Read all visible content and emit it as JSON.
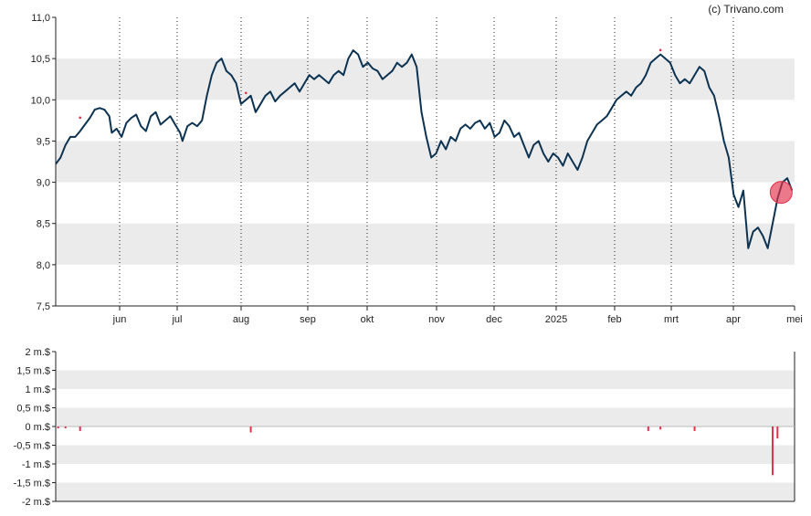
{
  "credit": "(c) Trivano.com",
  "colors": {
    "price_line": "#0d3352",
    "band": "#ebebeb",
    "marker": "#e0314b",
    "volume_bar": "#e0314b",
    "grid": "#222222"
  },
  "chart_data": [
    {
      "type": "line",
      "ylim": [
        7.5,
        11.0
      ],
      "y_ticks": [
        "11,0",
        "10,5",
        "10,0",
        "9,5",
        "9,0",
        "8,5",
        "8,0",
        "7,5"
      ],
      "x_ticks": [
        "jun",
        "jul",
        "aug",
        "sep",
        "okt",
        "nov",
        "dec",
        "2025",
        "feb",
        "mrt",
        "apr",
        "mei"
      ],
      "grid": "vertical dotted at month starts, alternating horizontal bands",
      "series": [
        {
          "values": [
            [
              0,
              9.22
            ],
            [
              2,
              9.3
            ],
            [
              4,
              9.45
            ],
            [
              6,
              9.55
            ],
            [
              8,
              9.55
            ],
            [
              10,
              9.62
            ],
            [
              12,
              9.7
            ],
            [
              14,
              9.78
            ],
            [
              16,
              9.88
            ],
            [
              18,
              9.9
            ],
            [
              20,
              9.88
            ],
            [
              22,
              9.8
            ],
            [
              23,
              9.6
            ],
            [
              25,
              9.65
            ],
            [
              27,
              9.55
            ],
            [
              29,
              9.72
            ],
            [
              31,
              9.78
            ],
            [
              33,
              9.82
            ],
            [
              35,
              9.68
            ],
            [
              37,
              9.62
            ],
            [
              39,
              9.8
            ],
            [
              41,
              9.85
            ],
            [
              43,
              9.7
            ],
            [
              45,
              9.75
            ],
            [
              47,
              9.8
            ],
            [
              49,
              9.7
            ],
            [
              51,
              9.6
            ],
            [
              52,
              9.5
            ],
            [
              54,
              9.68
            ],
            [
              56,
              9.72
            ],
            [
              58,
              9.68
            ],
            [
              60,
              9.75
            ],
            [
              62,
              10.05
            ],
            [
              64,
              10.3
            ],
            [
              66,
              10.45
            ],
            [
              68,
              10.5
            ],
            [
              70,
              10.35
            ],
            [
              72,
              10.3
            ],
            [
              74,
              10.2
            ],
            [
              76,
              9.95
            ],
            [
              78,
              10.0
            ],
            [
              80,
              10.05
            ],
            [
              82,
              9.85
            ],
            [
              84,
              9.95
            ],
            [
              86,
              10.05
            ],
            [
              88,
              10.1
            ],
            [
              90,
              9.98
            ],
            [
              92,
              10.05
            ],
            [
              94,
              10.1
            ],
            [
              96,
              10.15
            ],
            [
              98,
              10.2
            ],
            [
              100,
              10.1
            ],
            [
              102,
              10.2
            ],
            [
              104,
              10.3
            ],
            [
              106,
              10.25
            ],
            [
              108,
              10.3
            ],
            [
              110,
              10.25
            ],
            [
              112,
              10.2
            ],
            [
              114,
              10.3
            ],
            [
              116,
              10.35
            ],
            [
              118,
              10.3
            ],
            [
              120,
              10.5
            ],
            [
              122,
              10.6
            ],
            [
              124,
              10.55
            ],
            [
              126,
              10.4
            ],
            [
              128,
              10.45
            ],
            [
              130,
              10.38
            ],
            [
              132,
              10.35
            ],
            [
              134,
              10.25
            ],
            [
              136,
              10.3
            ],
            [
              138,
              10.35
            ],
            [
              140,
              10.45
            ],
            [
              142,
              10.4
            ],
            [
              144,
              10.45
            ],
            [
              146,
              10.55
            ],
            [
              148,
              10.4
            ],
            [
              150,
              9.85
            ],
            [
              152,
              9.55
            ],
            [
              154,
              9.3
            ],
            [
              156,
              9.35
            ],
            [
              158,
              9.5
            ],
            [
              160,
              9.4
            ],
            [
              162,
              9.55
            ],
            [
              164,
              9.5
            ],
            [
              166,
              9.65
            ],
            [
              168,
              9.7
            ],
            [
              170,
              9.65
            ],
            [
              172,
              9.72
            ],
            [
              174,
              9.75
            ],
            [
              176,
              9.65
            ],
            [
              178,
              9.72
            ],
            [
              180,
              9.55
            ],
            [
              182,
              9.6
            ],
            [
              184,
              9.75
            ],
            [
              186,
              9.68
            ],
            [
              188,
              9.55
            ],
            [
              190,
              9.6
            ],
            [
              192,
              9.45
            ],
            [
              194,
              9.3
            ],
            [
              196,
              9.45
            ],
            [
              198,
              9.5
            ],
            [
              200,
              9.35
            ],
            [
              202,
              9.25
            ],
            [
              204,
              9.35
            ],
            [
              206,
              9.3
            ],
            [
              208,
              9.2
            ],
            [
              210,
              9.35
            ],
            [
              212,
              9.25
            ],
            [
              214,
              9.15
            ],
            [
              216,
              9.3
            ],
            [
              218,
              9.5
            ],
            [
              220,
              9.6
            ],
            [
              222,
              9.7
            ],
            [
              224,
              9.75
            ],
            [
              226,
              9.8
            ],
            [
              228,
              9.9
            ],
            [
              230,
              10.0
            ],
            [
              232,
              10.05
            ],
            [
              234,
              10.1
            ],
            [
              236,
              10.05
            ],
            [
              238,
              10.15
            ],
            [
              240,
              10.2
            ],
            [
              242,
              10.3
            ],
            [
              244,
              10.45
            ],
            [
              246,
              10.5
            ],
            [
              248,
              10.55
            ],
            [
              250,
              10.5
            ],
            [
              252,
              10.45
            ],
            [
              254,
              10.3
            ],
            [
              256,
              10.2
            ],
            [
              258,
              10.25
            ],
            [
              260,
              10.2
            ],
            [
              262,
              10.3
            ],
            [
              264,
              10.4
            ],
            [
              266,
              10.35
            ],
            [
              268,
              10.15
            ],
            [
              270,
              10.05
            ],
            [
              272,
              9.8
            ],
            [
              274,
              9.5
            ],
            [
              276,
              9.3
            ],
            [
              278,
              8.85
            ],
            [
              280,
              8.7
            ],
            [
              282,
              8.9
            ],
            [
              284,
              8.2
            ],
            [
              286,
              8.4
            ],
            [
              288,
              8.45
            ],
            [
              290,
              8.35
            ],
            [
              292,
              8.2
            ],
            [
              294,
              8.5
            ],
            [
              296,
              8.8
            ],
            [
              298,
              9.0
            ],
            [
              300,
              9.05
            ],
            [
              302,
              8.9
            ]
          ]
        }
      ]
    },
    {
      "type": "bar",
      "ylim": [
        -2,
        2
      ],
      "y_ticks": [
        "2 m.$",
        "1,5 m.$",
        "1 m.$",
        "0,5 m.$",
        "0 m.$",
        "-0,5 m.$",
        "-1 m.$",
        "-1,5 m.$",
        "-2 m.$"
      ],
      "values": [
        [
          1,
          -0.05
        ],
        [
          4,
          -0.05
        ],
        [
          10,
          -0.12
        ],
        [
          80,
          -0.16
        ],
        [
          243,
          -0.12
        ],
        [
          248,
          -0.08
        ],
        [
          262,
          -0.12
        ],
        [
          294,
          -1.3
        ],
        [
          296,
          -0.32
        ]
      ]
    }
  ]
}
